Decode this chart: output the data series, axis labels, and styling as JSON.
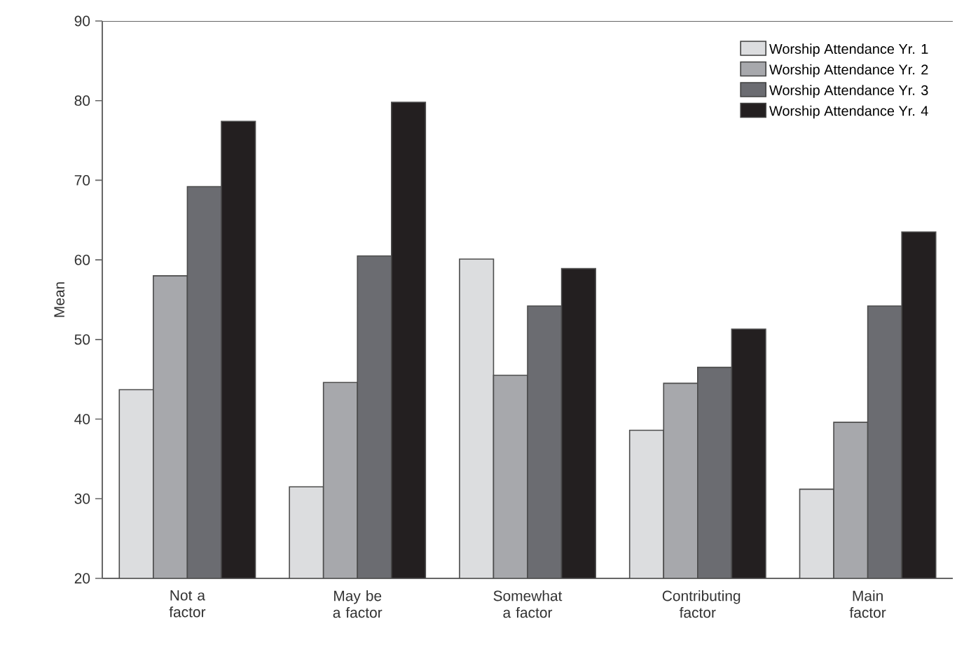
{
  "chart_data": {
    "type": "bar",
    "ylabel": "Mean",
    "categories": [
      "Not a factor",
      "May be a factor",
      "Somewhat a factor",
      "Contributing factor",
      "Main factor"
    ],
    "series": [
      {
        "name": "Worship Attendance Yr. 1",
        "color": "#dcdddf",
        "values": [
          43.7,
          31.5,
          60.1,
          38.6,
          31.2
        ]
      },
      {
        "name": "Worship Attendance Yr. 2",
        "color": "#a7a8ac",
        "values": [
          58.0,
          44.6,
          45.5,
          44.5,
          39.6
        ]
      },
      {
        "name": "Worship Attendance Yr. 3",
        "color": "#6b6c71",
        "values": [
          69.2,
          60.5,
          54.2,
          46.5,
          54.2
        ]
      },
      {
        "name": "Worship Attendance Yr. 4",
        "color": "#231f20",
        "values": [
          77.4,
          79.8,
          58.9,
          51.3,
          63.5
        ]
      }
    ],
    "ylim": [
      20,
      90
    ],
    "yticks": [
      20,
      30,
      40,
      50,
      60,
      70,
      80,
      90
    ],
    "legend": "top right",
    "grid": false
  }
}
